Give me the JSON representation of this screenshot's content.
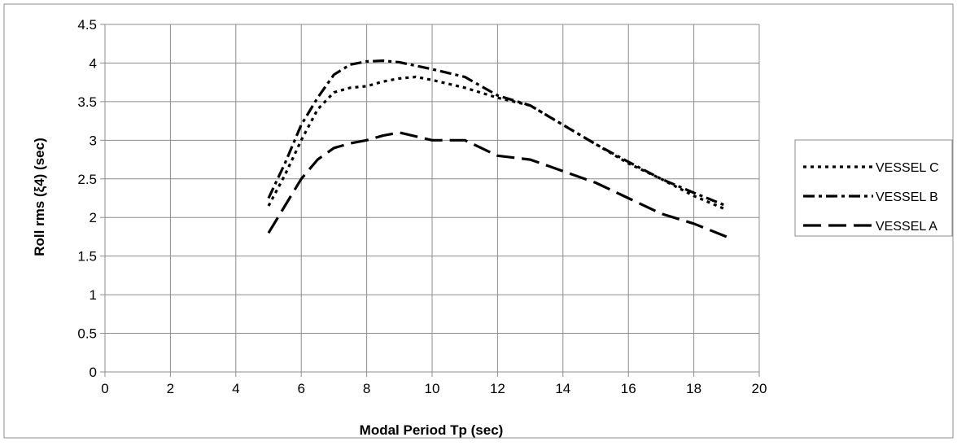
{
  "chart_data": {
    "type": "line",
    "title": "",
    "xlabel": "Modal Period Tp (sec)",
    "ylabel": "Roll rms (ξ4) (sec)",
    "xlim": [
      0,
      20
    ],
    "ylim": [
      0,
      4.5
    ],
    "x_ticks": [
      "0",
      "2",
      "4",
      "6",
      "8",
      "10",
      "12",
      "14",
      "16",
      "18",
      "20"
    ],
    "y_ticks": [
      "0",
      "0.5",
      "1",
      "1.5",
      "2",
      "2.5",
      "3",
      "3.5",
      "4",
      "4.5"
    ],
    "grid": true,
    "legend_position": "right",
    "series": [
      {
        "name": "VESSEL C",
        "dash": "short-dash",
        "color": "#000000",
        "points": [
          [
            5.0,
            2.15
          ],
          [
            5.5,
            2.55
          ],
          [
            6.0,
            3.0
          ],
          [
            6.5,
            3.4
          ],
          [
            7.0,
            3.62
          ],
          [
            7.5,
            3.68
          ],
          [
            8.0,
            3.7
          ],
          [
            8.5,
            3.76
          ],
          [
            9.0,
            3.8
          ],
          [
            9.5,
            3.82
          ],
          [
            10.0,
            3.78
          ],
          [
            11.0,
            3.68
          ],
          [
            12.0,
            3.55
          ],
          [
            13.0,
            3.45
          ],
          [
            14.0,
            3.2
          ],
          [
            15.0,
            2.95
          ],
          [
            16.0,
            2.7
          ],
          [
            17.0,
            2.5
          ],
          [
            18.0,
            2.28
          ],
          [
            19.0,
            2.1
          ]
        ]
      },
      {
        "name": "VESSEL B",
        "dash": "dash-dot",
        "color": "#000000",
        "points": [
          [
            5.0,
            2.25
          ],
          [
            5.5,
            2.7
          ],
          [
            6.0,
            3.2
          ],
          [
            6.5,
            3.55
          ],
          [
            7.0,
            3.85
          ],
          [
            7.5,
            3.98
          ],
          [
            8.0,
            4.02
          ],
          [
            8.5,
            4.03
          ],
          [
            9.0,
            4.01
          ],
          [
            10.0,
            3.92
          ],
          [
            11.0,
            3.82
          ],
          [
            12.0,
            3.58
          ],
          [
            13.0,
            3.45
          ],
          [
            14.0,
            3.2
          ],
          [
            15.0,
            2.95
          ],
          [
            16.0,
            2.72
          ],
          [
            17.0,
            2.5
          ],
          [
            18.0,
            2.32
          ],
          [
            19.0,
            2.15
          ]
        ]
      },
      {
        "name": "VESSEL A",
        "dash": "long-dash",
        "color": "#000000",
        "points": [
          [
            5.0,
            1.8
          ],
          [
            5.5,
            2.15
          ],
          [
            6.0,
            2.5
          ],
          [
            6.5,
            2.75
          ],
          [
            7.0,
            2.9
          ],
          [
            7.5,
            2.96
          ],
          [
            8.0,
            3.0
          ],
          [
            8.5,
            3.06
          ],
          [
            9.0,
            3.1
          ],
          [
            9.5,
            3.05
          ],
          [
            10.0,
            3.0
          ],
          [
            11.0,
            3.0
          ],
          [
            12.0,
            2.8
          ],
          [
            13.0,
            2.75
          ],
          [
            14.0,
            2.6
          ],
          [
            15.0,
            2.45
          ],
          [
            16.0,
            2.25
          ],
          [
            17.0,
            2.05
          ],
          [
            18.0,
            1.92
          ],
          [
            19.0,
            1.75
          ]
        ]
      }
    ]
  }
}
